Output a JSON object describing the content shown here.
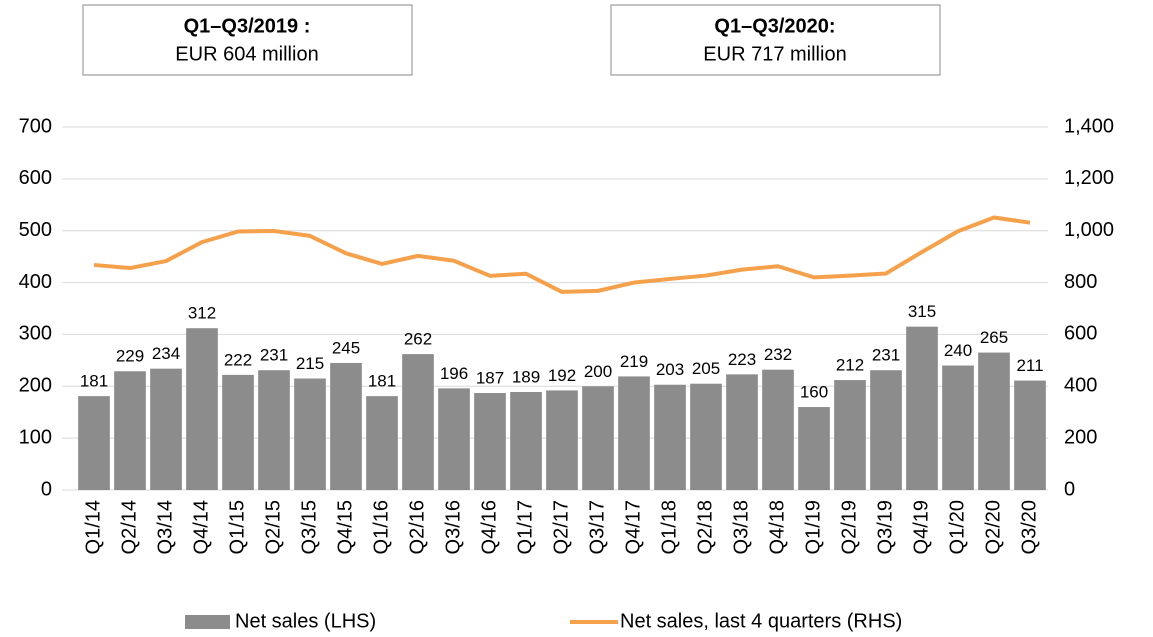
{
  "chart_data": {
    "type": "bar_line",
    "annotations": [
      {
        "title": "Q1–Q3/2019 :",
        "text": "EUR 604 million"
      },
      {
        "title": "Q1–Q3/2020:",
        "text": "EUR 717 million"
      }
    ],
    "categories": [
      "Q1/14",
      "Q2/14",
      "Q3/14",
      "Q4/14",
      "Q1/15",
      "Q2/15",
      "Q3/15",
      "Q4/15",
      "Q1/16",
      "Q2/16",
      "Q3/16",
      "Q4/16",
      "Q1/17",
      "Q2/17",
      "Q3/17",
      "Q4/17",
      "Q1/18",
      "Q2/18",
      "Q3/18",
      "Q4/18",
      "Q1/19",
      "Q2/19",
      "Q3/19",
      "Q4/19",
      "Q1/20",
      "Q2/20",
      "Q3/20"
    ],
    "series": [
      {
        "name": "Net sales (LHS)",
        "color": "#8c8c8c",
        "type": "bar",
        "axis": "y",
        "values": [
          181,
          229,
          234,
          312,
          222,
          231,
          215,
          245,
          181,
          262,
          196,
          187,
          189,
          192,
          200,
          219,
          203,
          205,
          223,
          232,
          160,
          212,
          231,
          315,
          240,
          265,
          211
        ]
      },
      {
        "name": "Net sales, last 4 quarters (RHS)",
        "color": "#f5a04b",
        "type": "line",
        "axis": "y2",
        "values": [
          868,
          856,
          883,
          956,
          997,
          999,
          980,
          913,
          872,
          903,
          884,
          826,
          834,
          764,
          768,
          800,
          814,
          827,
          850,
          863,
          820,
          827,
          835,
          918,
          998,
          1051,
          1031
        ]
      }
    ],
    "ylim": [
      0,
      700
    ],
    "yticks": [
      0,
      100,
      200,
      300,
      400,
      500,
      600,
      700
    ],
    "y2lim": [
      0,
      1400
    ],
    "y2ticks": [
      0,
      200,
      400,
      600,
      800,
      {
        "value": 1000,
        "label": "1,000"
      },
      {
        "value": 1200,
        "label": "1,200"
      },
      {
        "value": 1400,
        "label": "1,400"
      }
    ],
    "grid": true,
    "legend": "bottom"
  }
}
